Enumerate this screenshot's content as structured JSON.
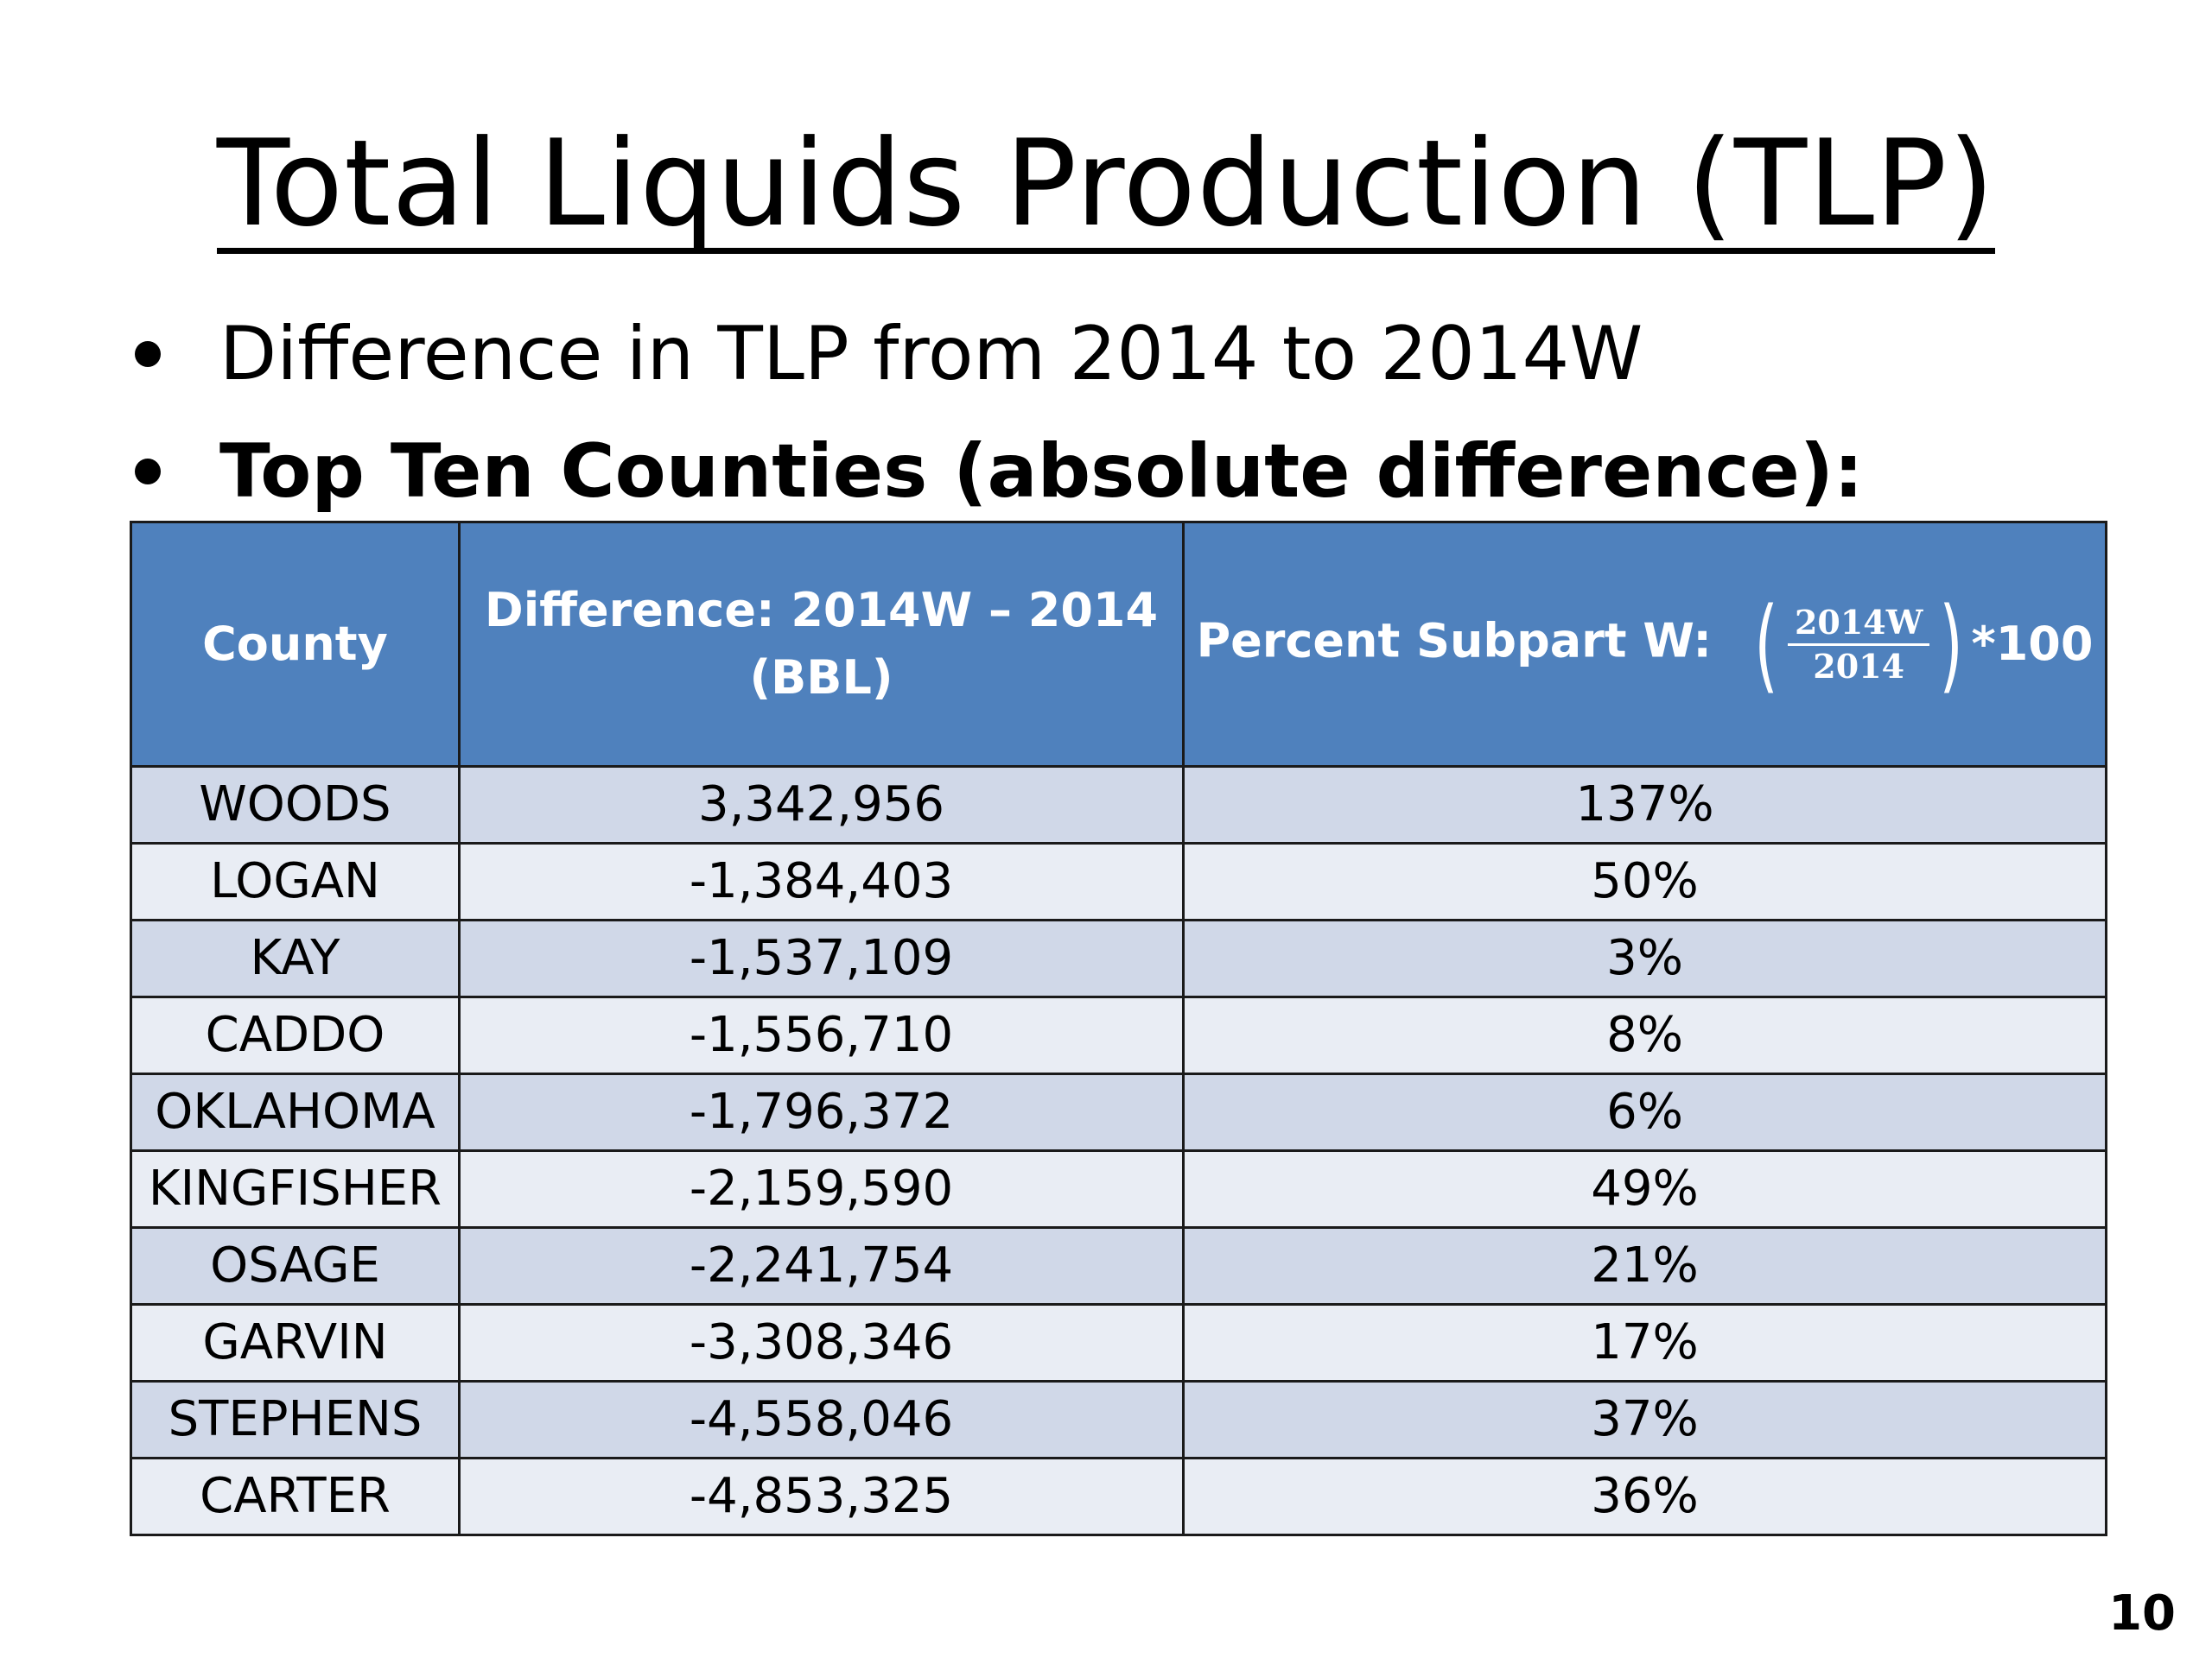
{
  "title": "Total Liquids Production (TLP)",
  "bullets": [
    "Difference in TLP from 2014 to 2014W",
    "Top Ten Counties (absolute difference):"
  ],
  "table": {
    "headers": {
      "county": "County",
      "difference_line1": "Difference: 2014W – 2014",
      "difference_line2": "(BBL)",
      "percent_label": "Percent Subpart W:",
      "formula_numerator": "2014W",
      "formula_denominator": "2014",
      "formula_multiplier": "*100"
    },
    "rows": [
      {
        "county": "WOODS",
        "difference": "3,342,956",
        "percent": "137%"
      },
      {
        "county": "LOGAN",
        "difference": "-1,384,403",
        "percent": "50%"
      },
      {
        "county": "KAY",
        "difference": "-1,537,109",
        "percent": "3%"
      },
      {
        "county": "CADDO",
        "difference": "-1,556,710",
        "percent": "8%"
      },
      {
        "county": "OKLAHOMA",
        "difference": "-1,796,372",
        "percent": "6%"
      },
      {
        "county": "KINGFISHER",
        "difference": "-2,159,590",
        "percent": "49%"
      },
      {
        "county": "OSAGE",
        "difference": "-2,241,754",
        "percent": "21%"
      },
      {
        "county": "GARVIN",
        "difference": "-3,308,346",
        "percent": "17%"
      },
      {
        "county": "STEPHENS",
        "difference": "-4,558,046",
        "percent": "37%"
      },
      {
        "county": "CARTER",
        "difference": "-4,853,325",
        "percent": "36%"
      }
    ]
  },
  "page_number": "10",
  "colors": {
    "header_fill": "#4f81bd",
    "row_band_dark": "#d0d8e8",
    "row_band_light": "#e9edf4"
  }
}
